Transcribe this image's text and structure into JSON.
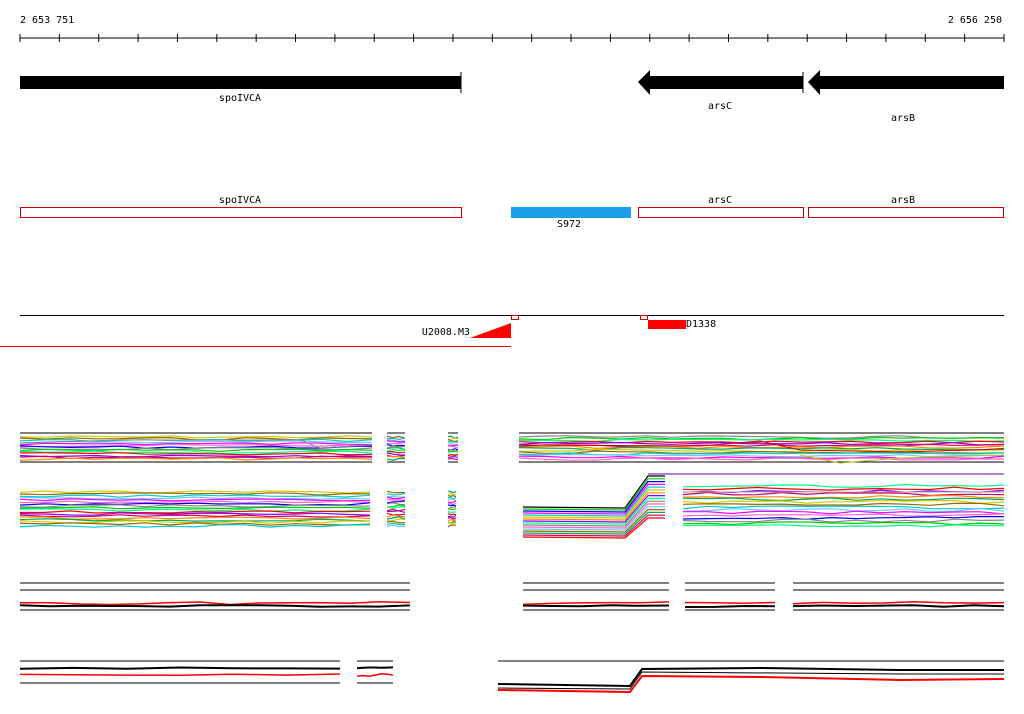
{
  "coordinates": {
    "start_label": "2 653 751",
    "end_label": "2 656 250"
  },
  "colors": {
    "gene_arrow": "#000000",
    "outline_box": "#cc0000",
    "highlight_box": "#1a9fe8",
    "feature_red": "#ff0000",
    "baseline": "#000000",
    "trace_red": "#ff0000"
  },
  "genes": [
    {
      "name": "spoIVCA",
      "direction": "forward"
    },
    {
      "name": "arsC",
      "direction": "reverse"
    },
    {
      "name": "arsB",
      "direction": "reverse"
    }
  ],
  "annotation_boxes": [
    {
      "label": "spoIVCA",
      "style": "outline"
    },
    {
      "label": "S972",
      "style": "filled-blue"
    },
    {
      "label": "arsC",
      "style": "outline"
    },
    {
      "label": "arsB",
      "style": "outline"
    }
  ],
  "features": [
    {
      "label": "U2008.M3",
      "style": "red-wedge"
    },
    {
      "label": "D1338",
      "style": "red-block"
    }
  ],
  "track_colors": [
    "#ff0000",
    "#00cc00",
    "#0000ff",
    "#ff00ff",
    "#00cccc",
    "#cccc00",
    "#ff8800",
    "#8800ff",
    "#00ff88",
    "#888888",
    "#ff66cc",
    "#66ccff",
    "#996600",
    "#00aa55",
    "#cc0066"
  ]
}
